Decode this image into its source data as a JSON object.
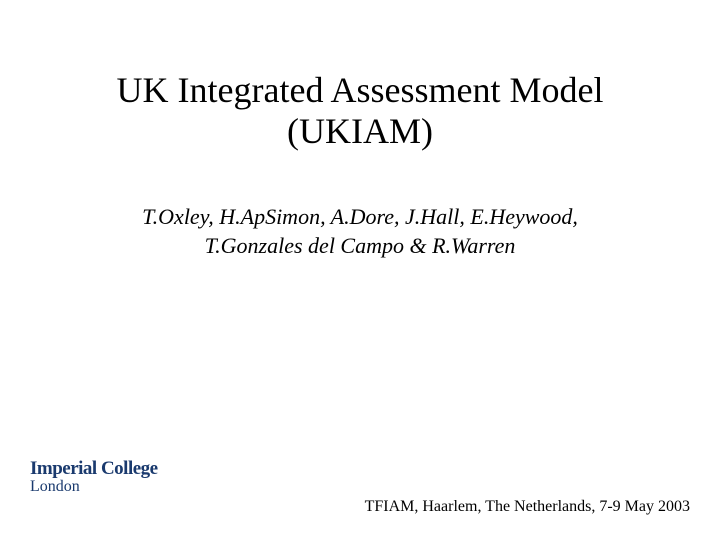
{
  "slide": {
    "title_line1": "UK Integrated Assessment Model",
    "title_line2": "(UKIAM)",
    "title_fontsize": 36,
    "title_color": "#000000",
    "authors_line1": "T.Oxley, H.ApSimon, A.Dore, J.Hall, E.Heywood,",
    "authors_line2": "T.Gonzales del Campo & R.Warren",
    "authors_fontsize": 22,
    "authors_color": "#000000",
    "footer_text": "TFIAM, Haarlem, The Netherlands, 7-9 May 2003",
    "footer_fontsize": 16,
    "footer_color": "#000000",
    "background_color": "#ffffff"
  },
  "logo": {
    "text_top": "Imperial College",
    "text_bottom": "London",
    "color": "#1a3a6e",
    "top_fontsize": 19,
    "bottom_fontsize": 16
  }
}
